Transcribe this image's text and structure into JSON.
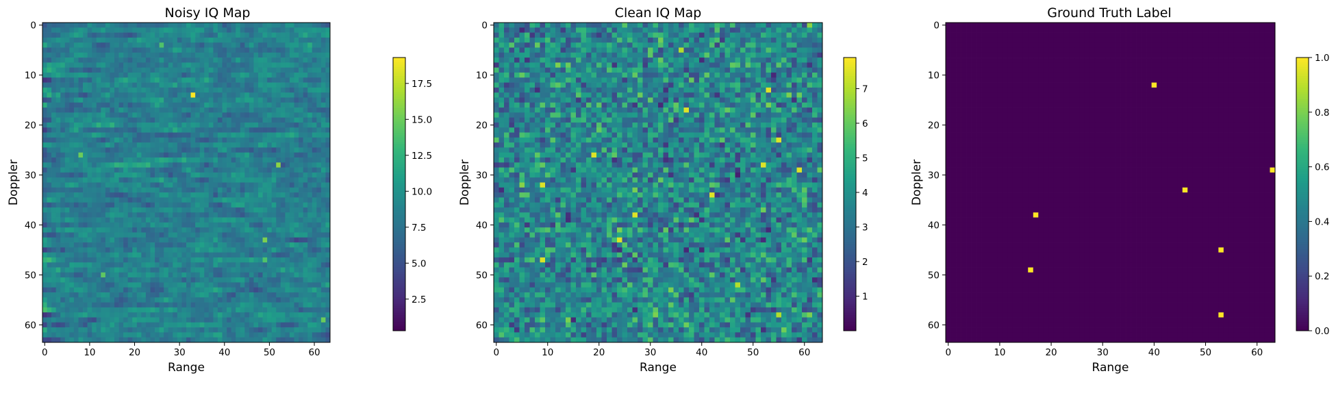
{
  "chart_data": [
    {
      "type": "heatmap",
      "title": "Noisy IQ Map",
      "xlabel": "Range",
      "ylabel": "Doppler",
      "shape": [
        64,
        64
      ],
      "xticks": [
        "0",
        "10",
        "20",
        "30",
        "40",
        "50",
        "60"
      ],
      "yticks": [
        "0",
        "10",
        "20",
        "30",
        "40",
        "50",
        "60"
      ],
      "colormap": "viridis",
      "colorbar": {
        "min": 0.3,
        "max": 19.3,
        "ticks": [
          "2.5",
          "5.0",
          "7.5",
          "10.0",
          "12.5",
          "15.0",
          "17.5"
        ]
      },
      "pattern": {
        "kind": "noise",
        "seed": 11,
        "low": 1.0,
        "high": 13.0,
        "row_smooth": 0.6
      },
      "highlights": [
        [
          33,
          14,
          19.3
        ],
        [
          52,
          28,
          16.0
        ],
        [
          49,
          43,
          15.5
        ],
        [
          8,
          26,
          15.0
        ],
        [
          13,
          50,
          14.5
        ],
        [
          62,
          59,
          15.0
        ],
        [
          49,
          47,
          14.0
        ],
        [
          26,
          4,
          14.0
        ]
      ]
    },
    {
      "type": "heatmap",
      "title": "Clean IQ Map",
      "xlabel": "Range",
      "ylabel": "Doppler",
      "shape": [
        64,
        64
      ],
      "xticks": [
        "0",
        "10",
        "20",
        "30",
        "40",
        "50",
        "60"
      ],
      "yticks": [
        "0",
        "10",
        "20",
        "30",
        "40",
        "50",
        "60"
      ],
      "colormap": "viridis",
      "colorbar": {
        "min": 0.0,
        "max": 7.9,
        "ticks": [
          "1",
          "2",
          "3",
          "4",
          "5",
          "6",
          "7"
        ]
      },
      "pattern": {
        "kind": "noise",
        "seed": 23,
        "low": 0.5,
        "high": 5.5,
        "row_smooth": 0.0
      },
      "highlights": [
        [
          9,
          32,
          7.5
        ],
        [
          19,
          26,
          7.5
        ],
        [
          27,
          38,
          7.5
        ],
        [
          24,
          43,
          7.5
        ],
        [
          37,
          17,
          7.5
        ],
        [
          42,
          34,
          7.5
        ],
        [
          52,
          28,
          7.5
        ],
        [
          53,
          13,
          7.5
        ],
        [
          55,
          23,
          7.5
        ],
        [
          59,
          29,
          7.5
        ],
        [
          9,
          47,
          7.5
        ],
        [
          36,
          5,
          7.0
        ],
        [
          47,
          52,
          7.0
        ],
        [
          55,
          58,
          7.0
        ]
      ]
    },
    {
      "type": "heatmap",
      "title": "Ground Truth Label",
      "xlabel": "Range",
      "ylabel": "Doppler",
      "shape": [
        64,
        64
      ],
      "xticks": [
        "0",
        "10",
        "20",
        "30",
        "40",
        "50",
        "60"
      ],
      "yticks": [
        "0",
        "10",
        "20",
        "30",
        "40",
        "50",
        "60"
      ],
      "colormap": "viridis",
      "colorbar": {
        "min": 0.0,
        "max": 1.0,
        "ticks": [
          "0.0",
          "0.2",
          "0.4",
          "0.6",
          "0.8",
          "1.0"
        ]
      },
      "pattern": {
        "kind": "zeros"
      },
      "highlights": [
        [
          40,
          12,
          1.0
        ],
        [
          63,
          29,
          1.0
        ],
        [
          46,
          33,
          1.0
        ],
        [
          17,
          38,
          1.0
        ],
        [
          53,
          45,
          1.0
        ],
        [
          16,
          49,
          1.0
        ],
        [
          53,
          58,
          1.0
        ]
      ]
    }
  ]
}
